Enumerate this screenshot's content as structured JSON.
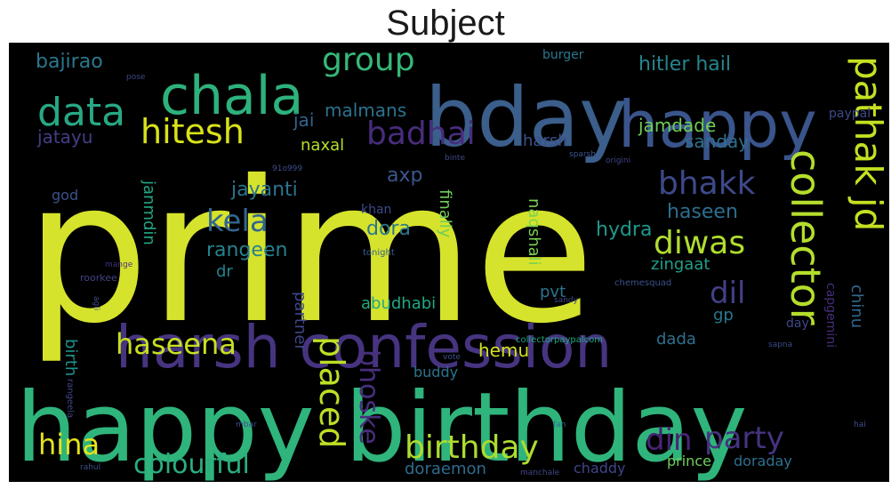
{
  "chart_data": {
    "type": "wordcloud",
    "title": "Subject",
    "background": "#000000",
    "palette": "viridis",
    "words": [
      {
        "text": "prime",
        "color": "#d6e32c"
      },
      {
        "text": "happy birthday",
        "color": "#2fb47c"
      },
      {
        "text": "harsh confession",
        "color": "#463480"
      },
      {
        "text": "bday",
        "color": "#3b5e8b"
      },
      {
        "text": "happy",
        "color": "#3a548c"
      },
      {
        "text": "chala",
        "color": "#2db27d"
      },
      {
        "text": "pathak jd",
        "color": "#c5e021"
      },
      {
        "text": "collector",
        "color": "#b5de2b"
      },
      {
        "text": "data",
        "color": "#27a884"
      },
      {
        "text": "hitesh",
        "color": "#d8e219"
      },
      {
        "text": "badhai",
        "color": "#472d7b"
      },
      {
        "text": "group",
        "color": "#35b779"
      },
      {
        "text": "diwas",
        "color": "#b0dd2f"
      },
      {
        "text": "bhakk",
        "color": "#3e4989"
      },
      {
        "text": "kela",
        "color": "#31668e"
      },
      {
        "text": "dil",
        "color": "#424086"
      },
      {
        "text": "din",
        "color": "#482475"
      },
      {
        "text": "birthday",
        "color": "#addc30"
      },
      {
        "text": "party",
        "color": "#46337f"
      },
      {
        "text": "placed",
        "color": "#bddf26"
      },
      {
        "text": "bhoske",
        "color": "#472f7d"
      },
      {
        "text": "haseena",
        "color": "#c8e020"
      },
      {
        "text": "hina",
        "color": "#e5e419"
      },
      {
        "text": "colourful",
        "color": "#29af7f"
      },
      {
        "text": "hitler hail",
        "color": "#25858e"
      },
      {
        "text": "bajirao",
        "color": "#2a788e"
      },
      {
        "text": "malmans",
        "color": "#2c728e"
      },
      {
        "text": "jai",
        "color": "#32648e"
      },
      {
        "text": "jatayu",
        "color": "#433e85"
      },
      {
        "text": "jamdade",
        "color": "#6ece58"
      },
      {
        "text": "harsh",
        "color": "#3b518b"
      },
      {
        "text": "sanday",
        "color": "#2e6f8e"
      },
      {
        "text": "naxal",
        "color": "#b5de2b"
      },
      {
        "text": "jayanti",
        "color": "#2c738e"
      },
      {
        "text": "axp",
        "color": "#38588c"
      },
      {
        "text": "haseen",
        "color": "#2e6e8e"
      },
      {
        "text": "rangeen",
        "color": "#26828e"
      },
      {
        "text": "dora",
        "color": "#2a788e"
      },
      {
        "text": "hydra",
        "color": "#1f988b"
      },
      {
        "text": "janmdin",
        "color": "#22a785"
      },
      {
        "text": "god",
        "color": "#3b528b"
      },
      {
        "text": "finally",
        "color": "#6ece58"
      },
      {
        "text": "naqshali",
        "color": "#7ad151"
      },
      {
        "text": "pvt",
        "color": "#2c738e"
      },
      {
        "text": "zingaat",
        "color": "#1f9e89"
      },
      {
        "text": "dr",
        "color": "#26828e"
      },
      {
        "text": "chinu",
        "color": "#31688e"
      },
      {
        "text": "gp",
        "color": "#2a788e"
      },
      {
        "text": "abudhabi",
        "color": "#22a884"
      },
      {
        "text": "partner",
        "color": "#3f4788"
      },
      {
        "text": "birth",
        "color": "#20928c"
      },
      {
        "text": "dada",
        "color": "#2d708e"
      },
      {
        "text": "hemu",
        "color": "#d2e21b"
      },
      {
        "text": "buddy",
        "color": "#2b758e"
      },
      {
        "text": "capgemini",
        "color": "#472d7b"
      },
      {
        "text": "day",
        "color": "#3f4889"
      },
      {
        "text": "doraemon",
        "color": "#2f6b8e"
      },
      {
        "text": "chaddy",
        "color": "#404588"
      },
      {
        "text": "prince",
        "color": "#6ece58"
      },
      {
        "text": "doraday",
        "color": "#2e6f8e"
      },
      {
        "text": "burger",
        "color": "#2a778e"
      },
      {
        "text": "paypal",
        "color": "#3e4989"
      },
      {
        "text": "pose",
        "color": "#404688"
      },
      {
        "text": "origini",
        "color": "#414287"
      },
      {
        "text": "sparsh",
        "color": "#3a548c"
      },
      {
        "text": "binte",
        "color": "#3f4889"
      },
      {
        "text": "91o999",
        "color": "#3d4e8a"
      },
      {
        "text": "khan",
        "color": "#3e4a89"
      },
      {
        "text": "tonight",
        "color": "#355f8d"
      },
      {
        "text": "mange",
        "color": "#46327e"
      },
      {
        "text": "roorkee",
        "color": "#414487"
      },
      {
        "text": "chemesquad",
        "color": "#3b518b"
      },
      {
        "text": "sandy",
        "color": "#404688"
      },
      {
        "text": "agli",
        "color": "#3e4a89"
      },
      {
        "text": "collectorpaypalcom",
        "color": "#22a884"
      },
      {
        "text": "sapna",
        "color": "#3d4d8a"
      },
      {
        "text": "vote",
        "color": "#3b528b"
      },
      {
        "text": "rangeela",
        "color": "#414487"
      },
      {
        "text": "mbar",
        "color": "#3e4a89"
      },
      {
        "text": "fan",
        "color": "#2d708e"
      },
      {
        "text": "hai",
        "color": "#3b528b"
      },
      {
        "text": "rahul",
        "color": "#3b528b"
      },
      {
        "text": "manchale",
        "color": "#3f4788"
      }
    ]
  }
}
